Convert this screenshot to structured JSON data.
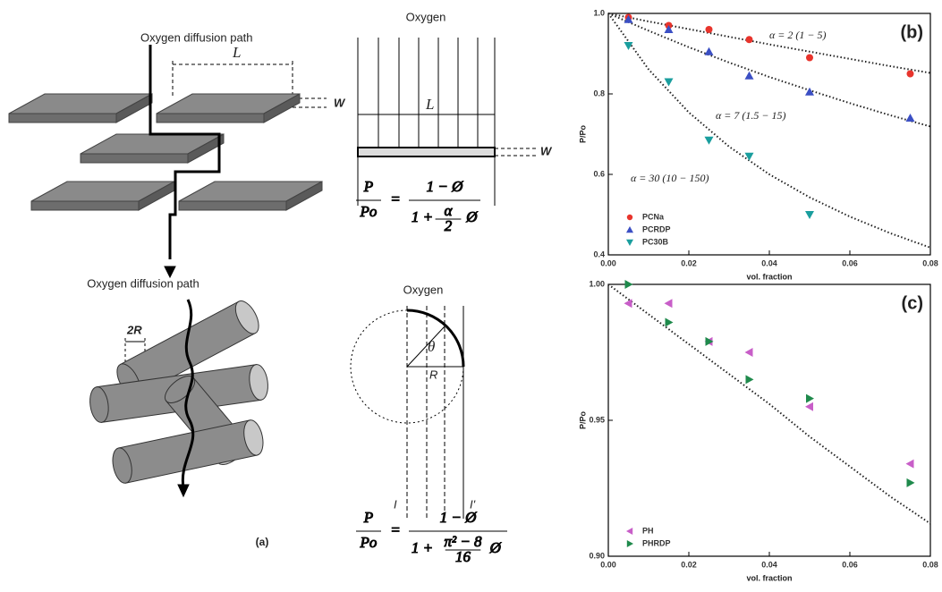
{
  "diagram": {
    "panel": "(a)",
    "path1": "Oxygen diffusion path",
    "path2": "Oxygen diffusion path",
    "L1": "L",
    "W1": "W",
    "oxygen1": "Oxygen",
    "L2": "L",
    "W2": "W",
    "oxygen2": "Oxygen",
    "d2R": "2R",
    "theta": "θ",
    "R": "R",
    "I": "I",
    "I2": "I'",
    "formula1": {
      "lhs": "P",
      "lhs_den": "Po",
      "eq": "=",
      "num": "1 − Ø",
      "den_a": "1 +",
      "frac_num": "α",
      "frac_den": "2",
      "den_b": "Ø"
    },
    "formula2": {
      "lhs": "P",
      "lhs_den": "Po",
      "eq": "=",
      "num": "1 − Ø",
      "den_a": "1 +",
      "frac_num": "π² − 8",
      "frac_den": "16",
      "den_b": "Ø"
    }
  },
  "chart_data": [
    {
      "type": "scatter",
      "panel": "(b)",
      "xlabel": "vol. fraction",
      "ylabel": "P/Po",
      "xlim": [
        0,
        0.08
      ],
      "ylim": [
        0.4,
        1.0
      ],
      "xticks": [
        {
          "value": 0,
          "label": "0.00"
        },
        {
          "value": 0.02,
          "label": "0.02"
        },
        {
          "value": 0.04,
          "label": "0.04"
        },
        {
          "value": 0.06,
          "label": "0.06"
        },
        {
          "value": 0.08,
          "label": "0.08"
        }
      ],
      "yticks": [
        0.4,
        0.6,
        0.8,
        {
          "value": 1,
          "label": "1.0"
        }
      ],
      "legend": "lower left",
      "x": [
        0.005,
        0.015,
        0.025,
        0.035,
        0.05,
        0.075
      ],
      "series": [
        {
          "name": "PCNa",
          "color": "#e8342c",
          "marker": "circle",
          "values": [
            0.99,
            0.97,
            0.96,
            0.935,
            0.89,
            0.85
          ]
        },
        {
          "name": "PCRDP",
          "color": "#3b4fc4",
          "marker": "triangle-up",
          "values": [
            0.985,
            0.96,
            0.905,
            0.845,
            0.805,
            0.74
          ]
        },
        {
          "name": "PC30B",
          "color": "#1a9e9e",
          "marker": "triangle-down",
          "values": [
            0.92,
            0.83,
            0.685,
            0.645,
            0.5,
            null
          ]
        }
      ],
      "fit_x": [
        0,
        0.01,
        0.02,
        0.03,
        0.04,
        0.05,
        0.06,
        0.07,
        0.08
      ],
      "fits": [
        {
          "label": "α = 2 (1 − 5)",
          "color": "#e8342c",
          "values": [
            1,
            0.98,
            0.961,
            0.942,
            0.923,
            0.905,
            0.887,
            0.869,
            0.852
          ]
        },
        {
          "label": "α = 7 (1.5 − 15)",
          "color": "#3b4fc4",
          "values": [
            1,
            0.957,
            0.916,
            0.878,
            0.842,
            0.809,
            0.777,
            0.747,
            0.719
          ]
        },
        {
          "label": "α = 30 (10 − 150)",
          "color": "#1a9e9e",
          "values": [
            1,
            0.861,
            0.754,
            0.669,
            0.6,
            0.543,
            0.495,
            0.454,
            0.418
          ]
        }
      ]
    },
    {
      "type": "scatter",
      "panel": "(c)",
      "xlabel": "vol. fraction",
      "ylabel": "P/Po",
      "xlim": [
        0,
        0.08
      ],
      "ylim": [
        0.9,
        1.0
      ],
      "xticks": [
        {
          "value": 0,
          "label": "0.00"
        },
        {
          "value": 0.02,
          "label": "0.02"
        },
        {
          "value": 0.04,
          "label": "0.04"
        },
        {
          "value": 0.06,
          "label": "0.06"
        },
        {
          "value": 0.08,
          "label": "0.08"
        }
      ],
      "yticks": [
        {
          "value": 0.9,
          "label": "0.90"
        },
        0.95,
        {
          "value": 1,
          "label": "1.00"
        }
      ],
      "legend": "lower left",
      "x": [
        0.005,
        0.015,
        0.025,
        0.035,
        0.05,
        0.075
      ],
      "series": [
        {
          "name": "PH",
          "color": "#c85ec8",
          "marker": "triangle-left",
          "values": [
            0.993,
            0.993,
            0.979,
            0.975,
            0.955,
            0.934
          ]
        },
        {
          "name": "PHRDP",
          "color": "#1f8a4c",
          "marker": "triangle-right",
          "values": [
            1.0,
            0.986,
            0.979,
            0.965,
            0.958,
            0.927
          ]
        }
      ],
      "fit_x": [
        0,
        0.01,
        0.02,
        0.03,
        0.04,
        0.05,
        0.06,
        0.07,
        0.08
      ],
      "fits": [
        {
          "color": "#222",
          "values": [
            1,
            0.989,
            0.978,
            0.967,
            0.956,
            0.944,
            0.933,
            0.922,
            0.912
          ]
        }
      ]
    }
  ]
}
